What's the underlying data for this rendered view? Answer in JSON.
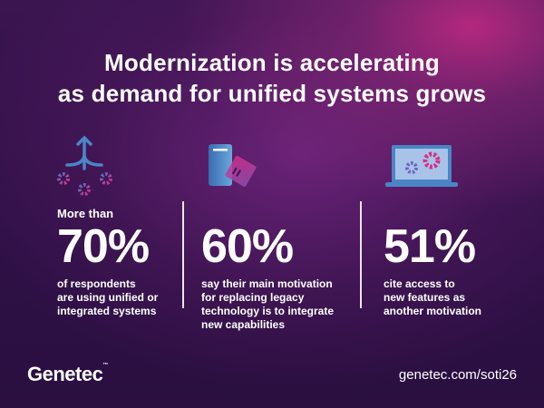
{
  "title": {
    "line1": "Modernization is accelerating",
    "line2": "as demand for unified systems grows"
  },
  "stats": [
    {
      "prefix": "More than",
      "value": "70%",
      "description": [
        "of respondents",
        "are using unified or",
        "integrated systems"
      ],
      "icon": "merge-arrow-gears-icon"
    },
    {
      "prefix": "",
      "value": "60%",
      "description": [
        "say their main motivation",
        "for replacing legacy",
        "technology is to integrate",
        "new capabilities"
      ],
      "icon": "server-floppy-icon"
    },
    {
      "prefix": "",
      "value": "51%",
      "description": [
        "cite access to",
        "new features as",
        "another motivation"
      ],
      "icon": "laptop-gears-icon"
    }
  ],
  "footer": {
    "logo": "Genetec",
    "trademark": "™",
    "url": "genetec.com/soti26"
  },
  "colors": {
    "accent": "#d62f8a",
    "icon_blue": "#4a86c5"
  }
}
